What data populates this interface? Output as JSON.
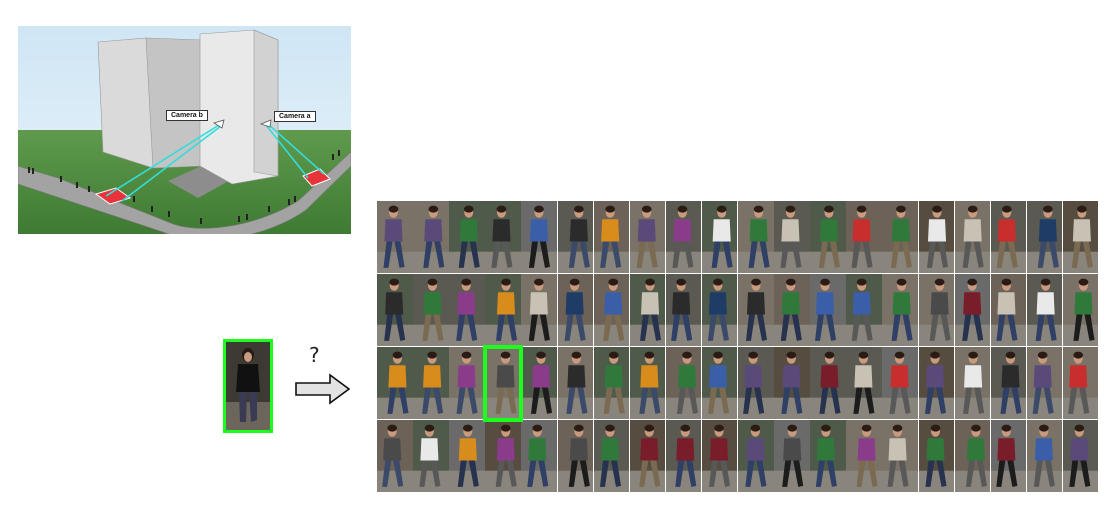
{
  "scene": {
    "camera_b_label": "Camera b",
    "camera_a_label": "Camera a"
  },
  "query": {
    "question_mark": "?"
  },
  "gallery": {
    "rows": 4,
    "columns": 20,
    "match": {
      "row": 3,
      "column": 4
    }
  },
  "colors": {
    "highlight": "#1cff1c",
    "sight_line": "#33dddd",
    "ground": "#4d8a3e",
    "sky": "#d9ecf7",
    "road": "#9a9a9a",
    "detection_zone": "#e8333b"
  }
}
